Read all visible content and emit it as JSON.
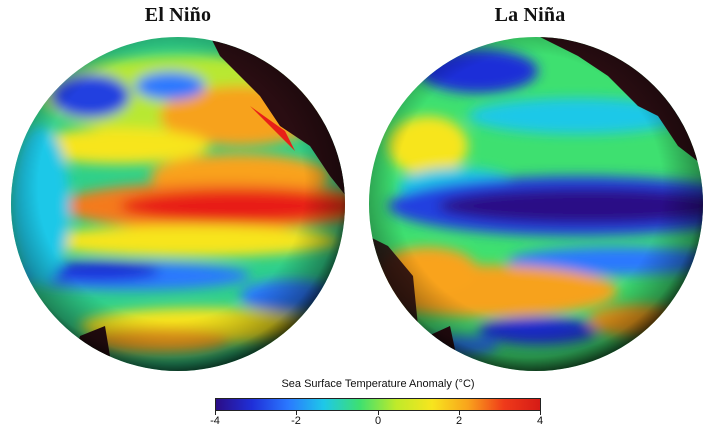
{
  "panels": [
    {
      "id": "left",
      "title": "El Niño"
    },
    {
      "id": "right",
      "title": "La Niña"
    }
  ],
  "legend": {
    "title": "Sea Surface Temperature Anomaly (°C)",
    "min": -4,
    "max": 4,
    "ticks": [
      "-4",
      "-2",
      "0",
      "2",
      "4"
    ],
    "colors": [
      "#2b0d86",
      "#1f2fd8",
      "#2a78ff",
      "#1ec8e8",
      "#3ee070",
      "#bfea2a",
      "#f7e51e",
      "#f9a31c",
      "#ef3a1a",
      "#d61b16"
    ]
  },
  "land_color": "#2a0d12"
}
